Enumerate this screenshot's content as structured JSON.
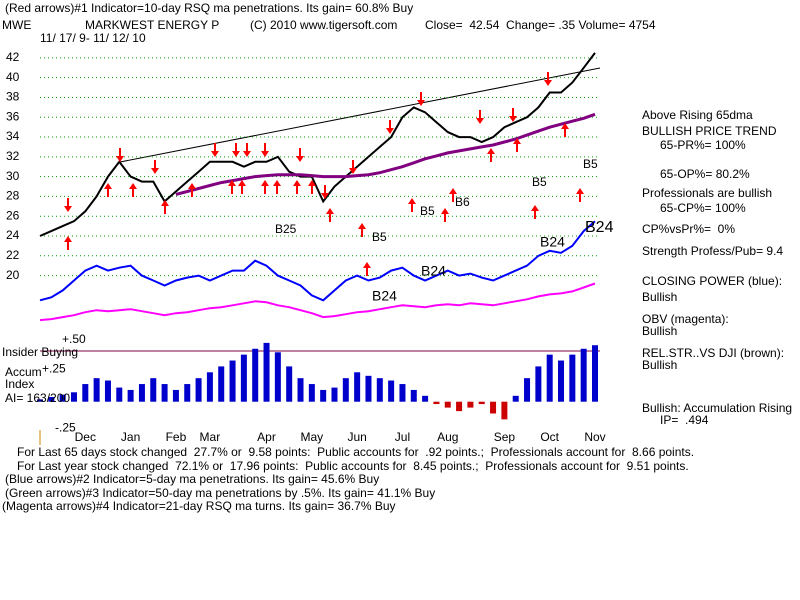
{
  "header": {
    "indicator_line": "(Red arrows)#1 Indicator=10-day RSQ ma penetrations. Its gain= 60.8% Buy",
    "symbol": "MWE",
    "company": "MARKWEST ENERGY P",
    "copyright": "(C) 2010 www.tigersoft.com",
    "quote": "Close=  42.54  Change= .35 Volume= 4754",
    "date_range": "11/ 17/ 9- 11/ 12/ 10"
  },
  "sidebar": [
    "Above Rising 65dma",
    "BULLISH PRICE TREND",
    "65-PR%= 100%",
    "65-OP%= 80.2%",
    "Professionals are bullish",
    "65-CP%= 100%",
    "CP%vsPr%=  0%",
    "Strength Profess/Pub= 9.4",
    "CLOSING POWER (blue):",
    "Bullish",
    "OBV (magenta):",
    "Bullish",
    "REL.STR..VS DJI (brown):",
    "Bullish",
    "Bullish: Accumulation Rising",
    "IP=  .494"
  ],
  "panel_labels": [
    "Insider Buying",
    "Accum",
    "Index",
    "AI= 163/200"
  ],
  "footer": [
    "For Last 65 days stock changed  27.7% or  9.58 points:  Public accounts for  .92 points.;  Professionals account for  8.66 points.",
    "For Last year stock changed  72.1% or  17.96 points:  Public accounts for  8.45 points.;  Professionals account for  9.51 points.",
    "(Blue arrows)#2 Indicator=5-day ma penetrations. Its gain= 45.6% Buy",
    "(Green arrows)#3 Indicator=50-day ma penetrations by .5%. Its gain= 41.1% Buy",
    "(Magenta arrows)#4 Indicator=21-day RSQ ma turns. Its gain= 36.7% Buy"
  ],
  "chart_data": [
    {
      "type": "line",
      "ylim": [
        14.5,
        43
      ],
      "yticks": [
        20,
        22,
        24,
        26,
        28,
        30,
        32,
        34,
        36,
        38,
        40,
        42
      ],
      "grid": true,
      "grid_color": "#00a000",
      "series": [
        {
          "color": "#000000",
          "values": [
            24,
            24.5,
            25,
            25.5,
            26.5,
            28,
            30,
            31.5,
            30,
            29.5,
            29.5,
            27.5,
            28.5,
            29.5,
            30.5,
            31.5,
            31.5,
            31.5,
            31,
            31.5,
            31.5,
            32,
            30.5,
            30,
            30,
            27.5,
            29,
            30,
            31,
            32,
            33,
            34,
            36,
            37,
            36.5,
            35.5,
            34.5,
            34,
            34,
            33.5,
            34,
            35,
            35.5,
            36,
            37,
            38.5,
            38.5,
            39.5,
            41,
            42.5
          ]
        },
        {
          "color": "#800080",
          "values": [
            null,
            null,
            null,
            null,
            null,
            null,
            null,
            null,
            null,
            null,
            null,
            null,
            28.2,
            28.5,
            28.8,
            29.1,
            29.4,
            29.6,
            29.8,
            30,
            30.1,
            30.2,
            30.2,
            30.2,
            30.1,
            30,
            30,
            30,
            30.1,
            30.2,
            30.4,
            30.7,
            31,
            31.4,
            31.8,
            32.1,
            32.4,
            32.6,
            32.8,
            33,
            33.2,
            33.5,
            33.8,
            34.2,
            34.6,
            35,
            35.3,
            35.6,
            35.9,
            36.3
          ]
        },
        {
          "color": "#0000ff",
          "values": [
            17.5,
            17.8,
            18.5,
            19.5,
            20.5,
            21,
            20.5,
            20.8,
            21,
            20,
            19.5,
            19,
            19.5,
            19.8,
            20,
            19.5,
            20,
            20.5,
            20.5,
            21.5,
            21,
            20,
            19.5,
            19,
            18,
            17.5,
            18.5,
            19.5,
            20,
            19.5,
            19.8,
            20.5,
            20.8,
            20,
            19.5,
            20,
            20.5,
            20,
            20.2,
            19.8,
            19.5,
            20,
            20.5,
            21,
            22,
            22.5,
            22.3,
            23,
            24.5,
            25.5
          ]
        },
        {
          "color": "#ff00ff",
          "values": [
            15.5,
            15.6,
            15.8,
            16,
            16.3,
            16.5,
            16.4,
            16.5,
            16.6,
            16.4,
            16.2,
            16,
            16.2,
            16.3,
            16.5,
            16.7,
            16.8,
            17,
            17.2,
            17.4,
            17.3,
            17,
            16.8,
            16.5,
            16.2,
            15.8,
            15.9,
            16.1,
            16.3,
            16.4,
            16.6,
            16.8,
            17,
            16.9,
            16.8,
            17,
            17.1,
            17,
            17.2,
            17.1,
            17,
            17.2,
            17.4,
            17.6,
            17.9,
            18.1,
            18.2,
            18.4,
            18.8,
            19.2
          ]
        }
      ],
      "annotations": [
        "B24",
        "B24",
        "B24",
        "B24",
        "B25",
        "B5",
        "B5",
        "B5",
        "B5",
        "B6"
      ]
    },
    {
      "type": "bar",
      "ylim": [
        -0.3,
        0.55
      ],
      "yticks": [
        {
          "value": 0.5,
          "label": "+.50"
        },
        {
          "value": 0.25,
          "label": "+.25"
        },
        {
          "value": -0.25,
          "label": "-.25"
        }
      ],
      "color": "#0000cc",
      "negative_color": "#cc0000",
      "categories": [
        null,
        null,
        null,
        null,
        "Dec",
        null,
        null,
        null,
        "Jan",
        null,
        null,
        null,
        "Feb",
        null,
        null,
        "Mar",
        null,
        null,
        null,
        null,
        "Apr",
        null,
        null,
        null,
        "May",
        null,
        null,
        null,
        "Jun",
        null,
        null,
        null,
        "Jul",
        null,
        null,
        null,
        "Aug",
        null,
        null,
        null,
        null,
        "Sep",
        null,
        null,
        null,
        "Oct",
        null,
        null,
        null,
        "Nov"
      ],
      "values": [
        0.02,
        0.04,
        0.06,
        0.08,
        0.15,
        0.2,
        0.18,
        0.12,
        0.1,
        0.15,
        0.2,
        0.15,
        0.1,
        0.15,
        0.2,
        0.25,
        0.3,
        0.35,
        0.4,
        0.45,
        0.5,
        0.42,
        0.3,
        0.2,
        0.15,
        0.1,
        0.12,
        0.2,
        0.25,
        0.22,
        0.2,
        0.18,
        0.15,
        0.1,
        0.05,
        -0.02,
        -0.05,
        -0.08,
        -0.05,
        -0.02,
        -0.1,
        -0.15,
        0.05,
        0.2,
        0.3,
        0.4,
        0.35,
        0.4,
        0.45,
        0.48
      ]
    }
  ]
}
